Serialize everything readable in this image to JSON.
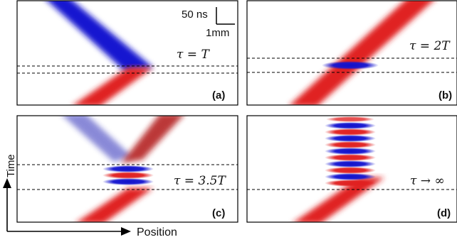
{
  "figure": {
    "scale_bar": {
      "time": "50 ns",
      "space": "1mm"
    },
    "axes": {
      "vertical": "Time",
      "horizontal": "Position"
    },
    "panels": [
      {
        "id": "a",
        "tag": "(a)",
        "tau_expr": "τ = T"
      },
      {
        "id": "b",
        "tag": "(b)",
        "tau_expr": "τ = 2T"
      },
      {
        "id": "c",
        "tag": "(c)",
        "tau_expr": "τ = 3.5T"
      },
      {
        "id": "d",
        "tag": "(d)",
        "tau_expr": "τ → ∞"
      }
    ],
    "colors": {
      "red_wave": "#e02020",
      "blue_wave": "#1515d0",
      "frame": "#000000"
    }
  }
}
